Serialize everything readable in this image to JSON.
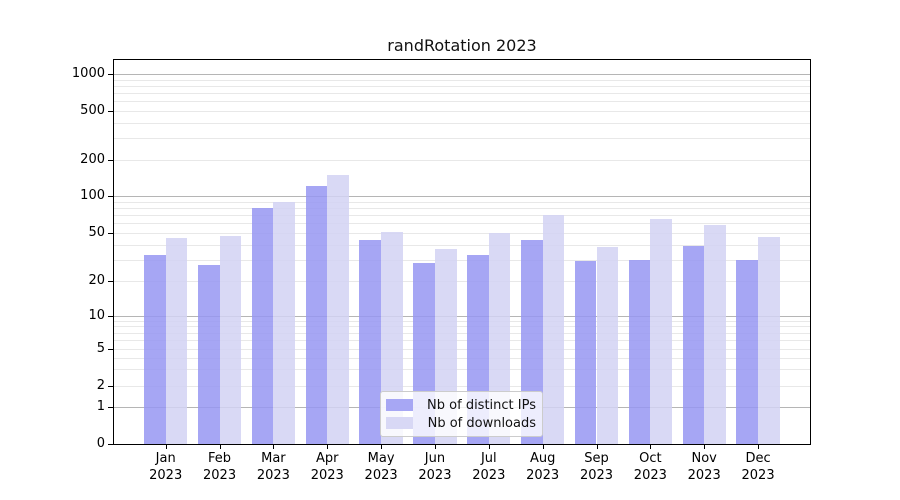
{
  "header": {
    "title": "randRotation 2023"
  },
  "chart_data": {
    "type": "bar",
    "title": "randRotation 2023",
    "categories": [
      "Jan 2023",
      "Feb 2023",
      "Mar 2023",
      "Apr 2023",
      "May 2023",
      "Jun 2023",
      "Jul 2023",
      "Aug 2023",
      "Sep 2023",
      "Oct 2023",
      "Nov 2023",
      "Dec 2023"
    ],
    "series": [
      {
        "name": "Nb of distinct IPs",
        "color": "#a7a7f4",
        "fill": "#9797f2",
        "fill_opacity": 0.85,
        "values": [
          33,
          27,
          80,
          120,
          44,
          28,
          33,
          44,
          29,
          30,
          39,
          30
        ]
      },
      {
        "name": "Nb of downloads",
        "color": "#d8d8f5",
        "fill": "#d2d2f3",
        "fill_opacity": 0.85,
        "values": [
          45,
          47,
          90,
          150,
          51,
          37,
          50,
          70,
          38,
          65,
          58,
          46
        ]
      }
    ],
    "xlabel": "",
    "ylabel": "",
    "yscale": "symlog",
    "y_ticks": [
      0,
      1,
      2,
      5,
      10,
      20,
      50,
      100,
      200,
      500,
      1000
    ],
    "ylim": [
      0,
      1300
    ],
    "grid": {
      "show": true,
      "major_color": "#b5b5b5",
      "minor_color": "#e8e8e8"
    },
    "legend": {
      "position": "inside-bottom-center",
      "frame": true
    }
  }
}
